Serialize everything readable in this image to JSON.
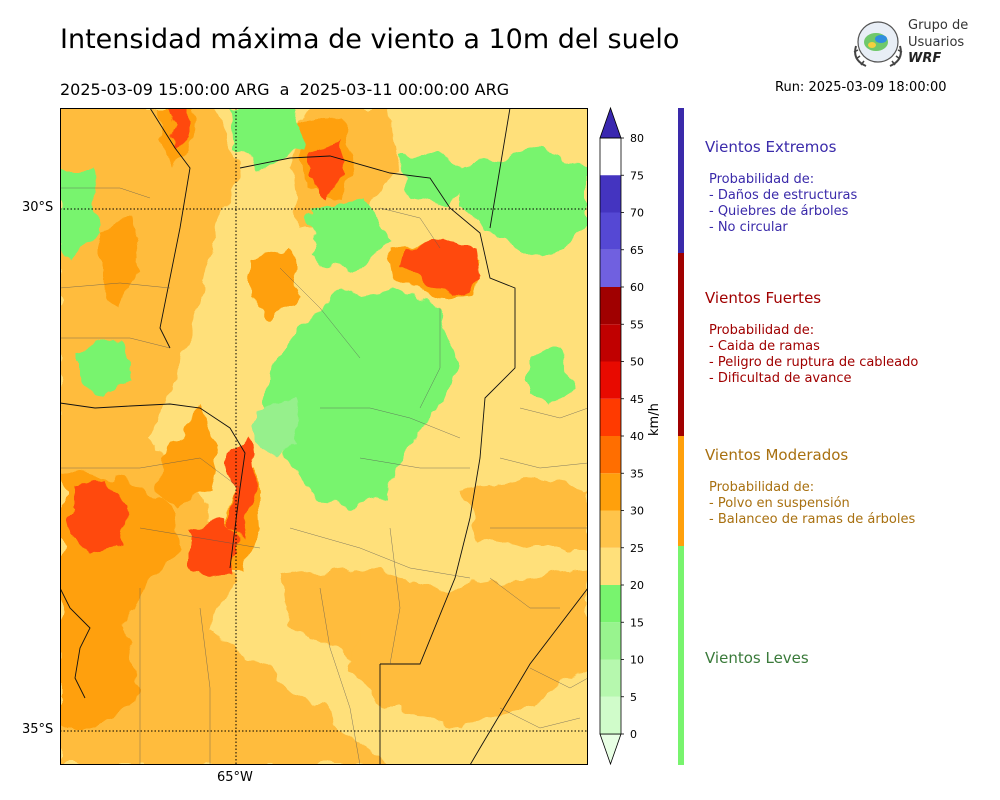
{
  "header": {
    "title": "Intensidad máxima de viento a 10m del suelo",
    "subtitle": "2025-03-09 15:00:00 ARG  a  2025-03-11 00:00:00 ARG",
    "run": "Run: 2025-03-09 18:00:00"
  },
  "logo": {
    "line1": "Grupo de",
    "line2": "Usuarios",
    "line3": "WRF"
  },
  "map": {
    "lat_labels": [
      "30°S",
      "35°S"
    ],
    "lon_labels": [
      "65°W"
    ],
    "description_colors": {
      "background_fill": "#ffe07a",
      "orange_fill": "#ffbc3c",
      "dark_orange_fill": "#ffa00c",
      "red_fill": "#ff4a0a",
      "green_fill": "#78f46e",
      "light_green_fill": "#96f08c"
    }
  },
  "colorbar": {
    "unit": "km/h",
    "ticks": [
      "0",
      "5",
      "10",
      "15",
      "20",
      "25",
      "30",
      "35",
      "40",
      "45",
      "50",
      "55",
      "60",
      "65",
      "70",
      "75",
      "80"
    ],
    "colors": [
      "#e8ffe4",
      "#d0fcca",
      "#b6f8ae",
      "#98f48e",
      "#78f46e",
      "#ffe07a",
      "#ffc44a",
      "#ffa00c",
      "#ff6e00",
      "#ff3a00",
      "#e80a00",
      "#c00000",
      "#a00000",
      "#7060e0",
      "#5548d4",
      "#4434c0",
      "#3a28b0"
    ]
  },
  "categories": [
    {
      "title": "Vientos Extremos",
      "color": "#3a2aaa",
      "desc_title": "Probabilidad de:",
      "items": [
        "- Daños de estructuras",
        "- Quiebres de árboles",
        "- No circular"
      ]
    },
    {
      "title": "Vientos Fuertes",
      "color": "#a00000",
      "desc_title": "Probabilidad de:",
      "items": [
        "- Caida de ramas",
        "- Peligro de ruptura de cableado",
        "- Dificultad de avance"
      ]
    },
    {
      "title": "Vientos Moderados",
      "color": "#a87010",
      "bar_color": "#ffa00c",
      "desc_title": "Probabilidad de:",
      "items": [
        "- Polvo en suspensión",
        "- Balanceo de ramas de árboles"
      ]
    },
    {
      "title": "Vientos Leves",
      "color": "#3a7a3a",
      "bar_color": "#78f46e"
    }
  ]
}
